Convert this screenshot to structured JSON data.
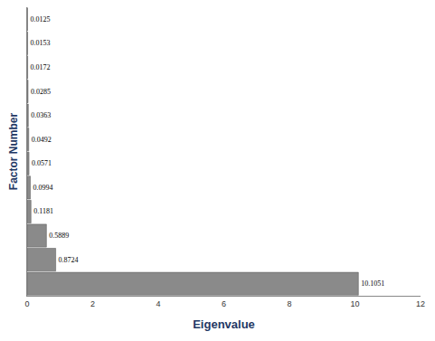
{
  "chart_data": {
    "type": "bar",
    "orientation": "horizontal",
    "xlabel": "Eigenvalue",
    "ylabel": "Factor Number",
    "categories": [
      null,
      null,
      null,
      null,
      null,
      null,
      null,
      null,
      null,
      null,
      null,
      null
    ],
    "values": [
      10.1051,
      0.8724,
      0.5889,
      0.1181,
      0.0994,
      0.0571,
      0.0492,
      0.0363,
      0.0285,
      0.0172,
      0.0153,
      0.0125
    ],
    "color": "#8a8a8a",
    "xlim": [
      0,
      12
    ],
    "xticks": [
      0,
      2,
      4,
      6,
      8,
      10,
      12
    ],
    "grid": false,
    "data_labels": true,
    "tick_labels": "x"
  }
}
